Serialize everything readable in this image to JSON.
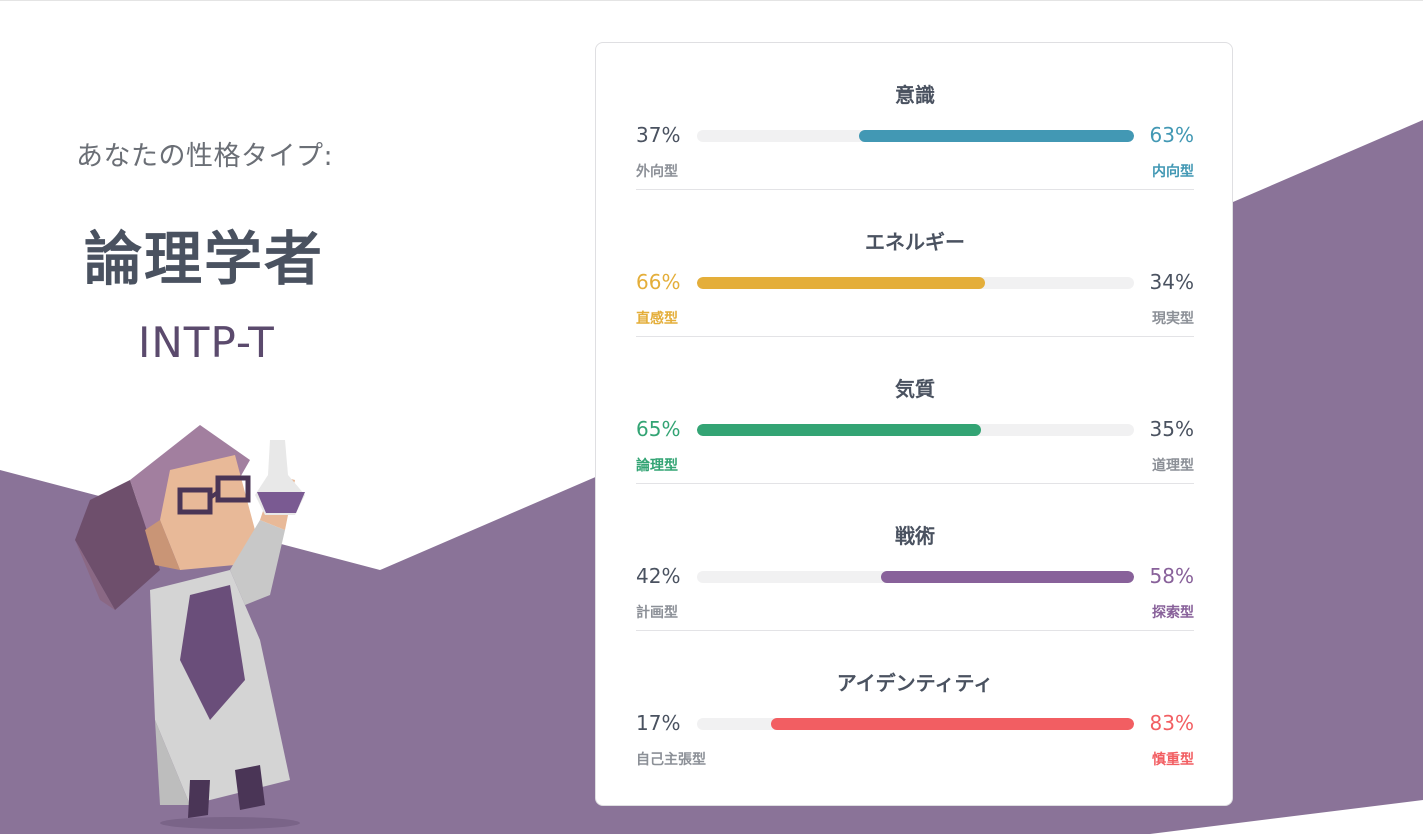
{
  "header": {
    "label": "あなたの性格タイプ:",
    "type_name": "論理学者",
    "type_code": "INTP-T"
  },
  "colors": {
    "purple_bg": "#8a7398",
    "text_dark": "#4a5260",
    "muted": "#8c9097"
  },
  "traits": [
    {
      "title": "意識",
      "left_pct": "37%",
      "left_label": "外向型",
      "right_pct": "63%",
      "right_label": "内向型",
      "dominant": "right",
      "fill": 0.63,
      "color": "#4298b4"
    },
    {
      "title": "エネルギー",
      "left_pct": "66%",
      "left_label": "直感型",
      "right_pct": "34%",
      "right_label": "現実型",
      "dominant": "left",
      "fill": 0.66,
      "color": "#e4ae3a"
    },
    {
      "title": "気質",
      "left_pct": "65%",
      "left_label": "論理型",
      "right_pct": "35%",
      "right_label": "道理型",
      "dominant": "left",
      "fill": 0.65,
      "color": "#33a474"
    },
    {
      "title": "戦術",
      "left_pct": "42%",
      "left_label": "計画型",
      "right_pct": "58%",
      "right_label": "探索型",
      "dominant": "right",
      "fill": 0.58,
      "color": "#88619a"
    },
    {
      "title": "アイデンティティ",
      "left_pct": "17%",
      "left_label": "自己主張型",
      "right_pct": "83%",
      "right_label": "慎重型",
      "dominant": "right",
      "fill": 0.83,
      "color": "#f25e62"
    }
  ]
}
